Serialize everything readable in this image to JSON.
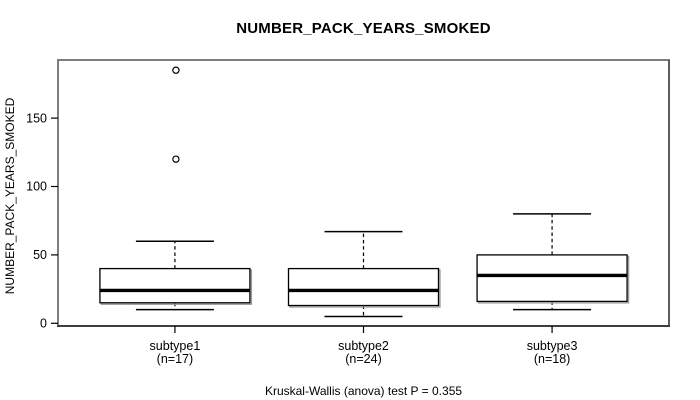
{
  "title": "NUMBER_PACK_YEARS_SMOKED",
  "y_axis": {
    "label": "NUMBER_PACK_YEARS_SMOKED",
    "ticks": [
      0,
      50,
      100,
      150
    ]
  },
  "caption": "Kruskal-Wallis (anova) test P = 0.355",
  "colors": {
    "background": "#ffffff",
    "text": "#000000",
    "frame": "#7d7d7d",
    "box_border": "#000000",
    "box_fill": "#ffffff",
    "box_shadow": "#9b9b9b",
    "axis_tick": "#000000"
  },
  "chart_data": {
    "type": "boxplot",
    "title": "NUMBER_PACK_YEARS_SMOKED",
    "xlabel": "",
    "ylabel": "NUMBER_PACK_YEARS_SMOKED",
    "ylim": [
      0,
      192
    ],
    "yticks": [
      0,
      50,
      100,
      150
    ],
    "grid": false,
    "annotation": "Kruskal-Wallis (anova) test P = 0.355",
    "groups": [
      {
        "label": "subtype1",
        "sublabel": "(n=17)",
        "n": 17,
        "whisker_low": 10,
        "q1": 15,
        "median": 24,
        "q3": 40,
        "whisker_high": 60,
        "outliers": [
          120,
          185
        ]
      },
      {
        "label": "subtype2",
        "sublabel": "(n=24)",
        "n": 24,
        "whisker_low": 5,
        "q1": 13,
        "median": 24,
        "q3": 40,
        "whisker_high": 67,
        "outliers": []
      },
      {
        "label": "subtype3",
        "sublabel": "(n=18)",
        "n": 18,
        "whisker_low": 10,
        "q1": 16,
        "median": 35,
        "q3": 50,
        "whisker_high": 80,
        "outliers": []
      }
    ]
  }
}
